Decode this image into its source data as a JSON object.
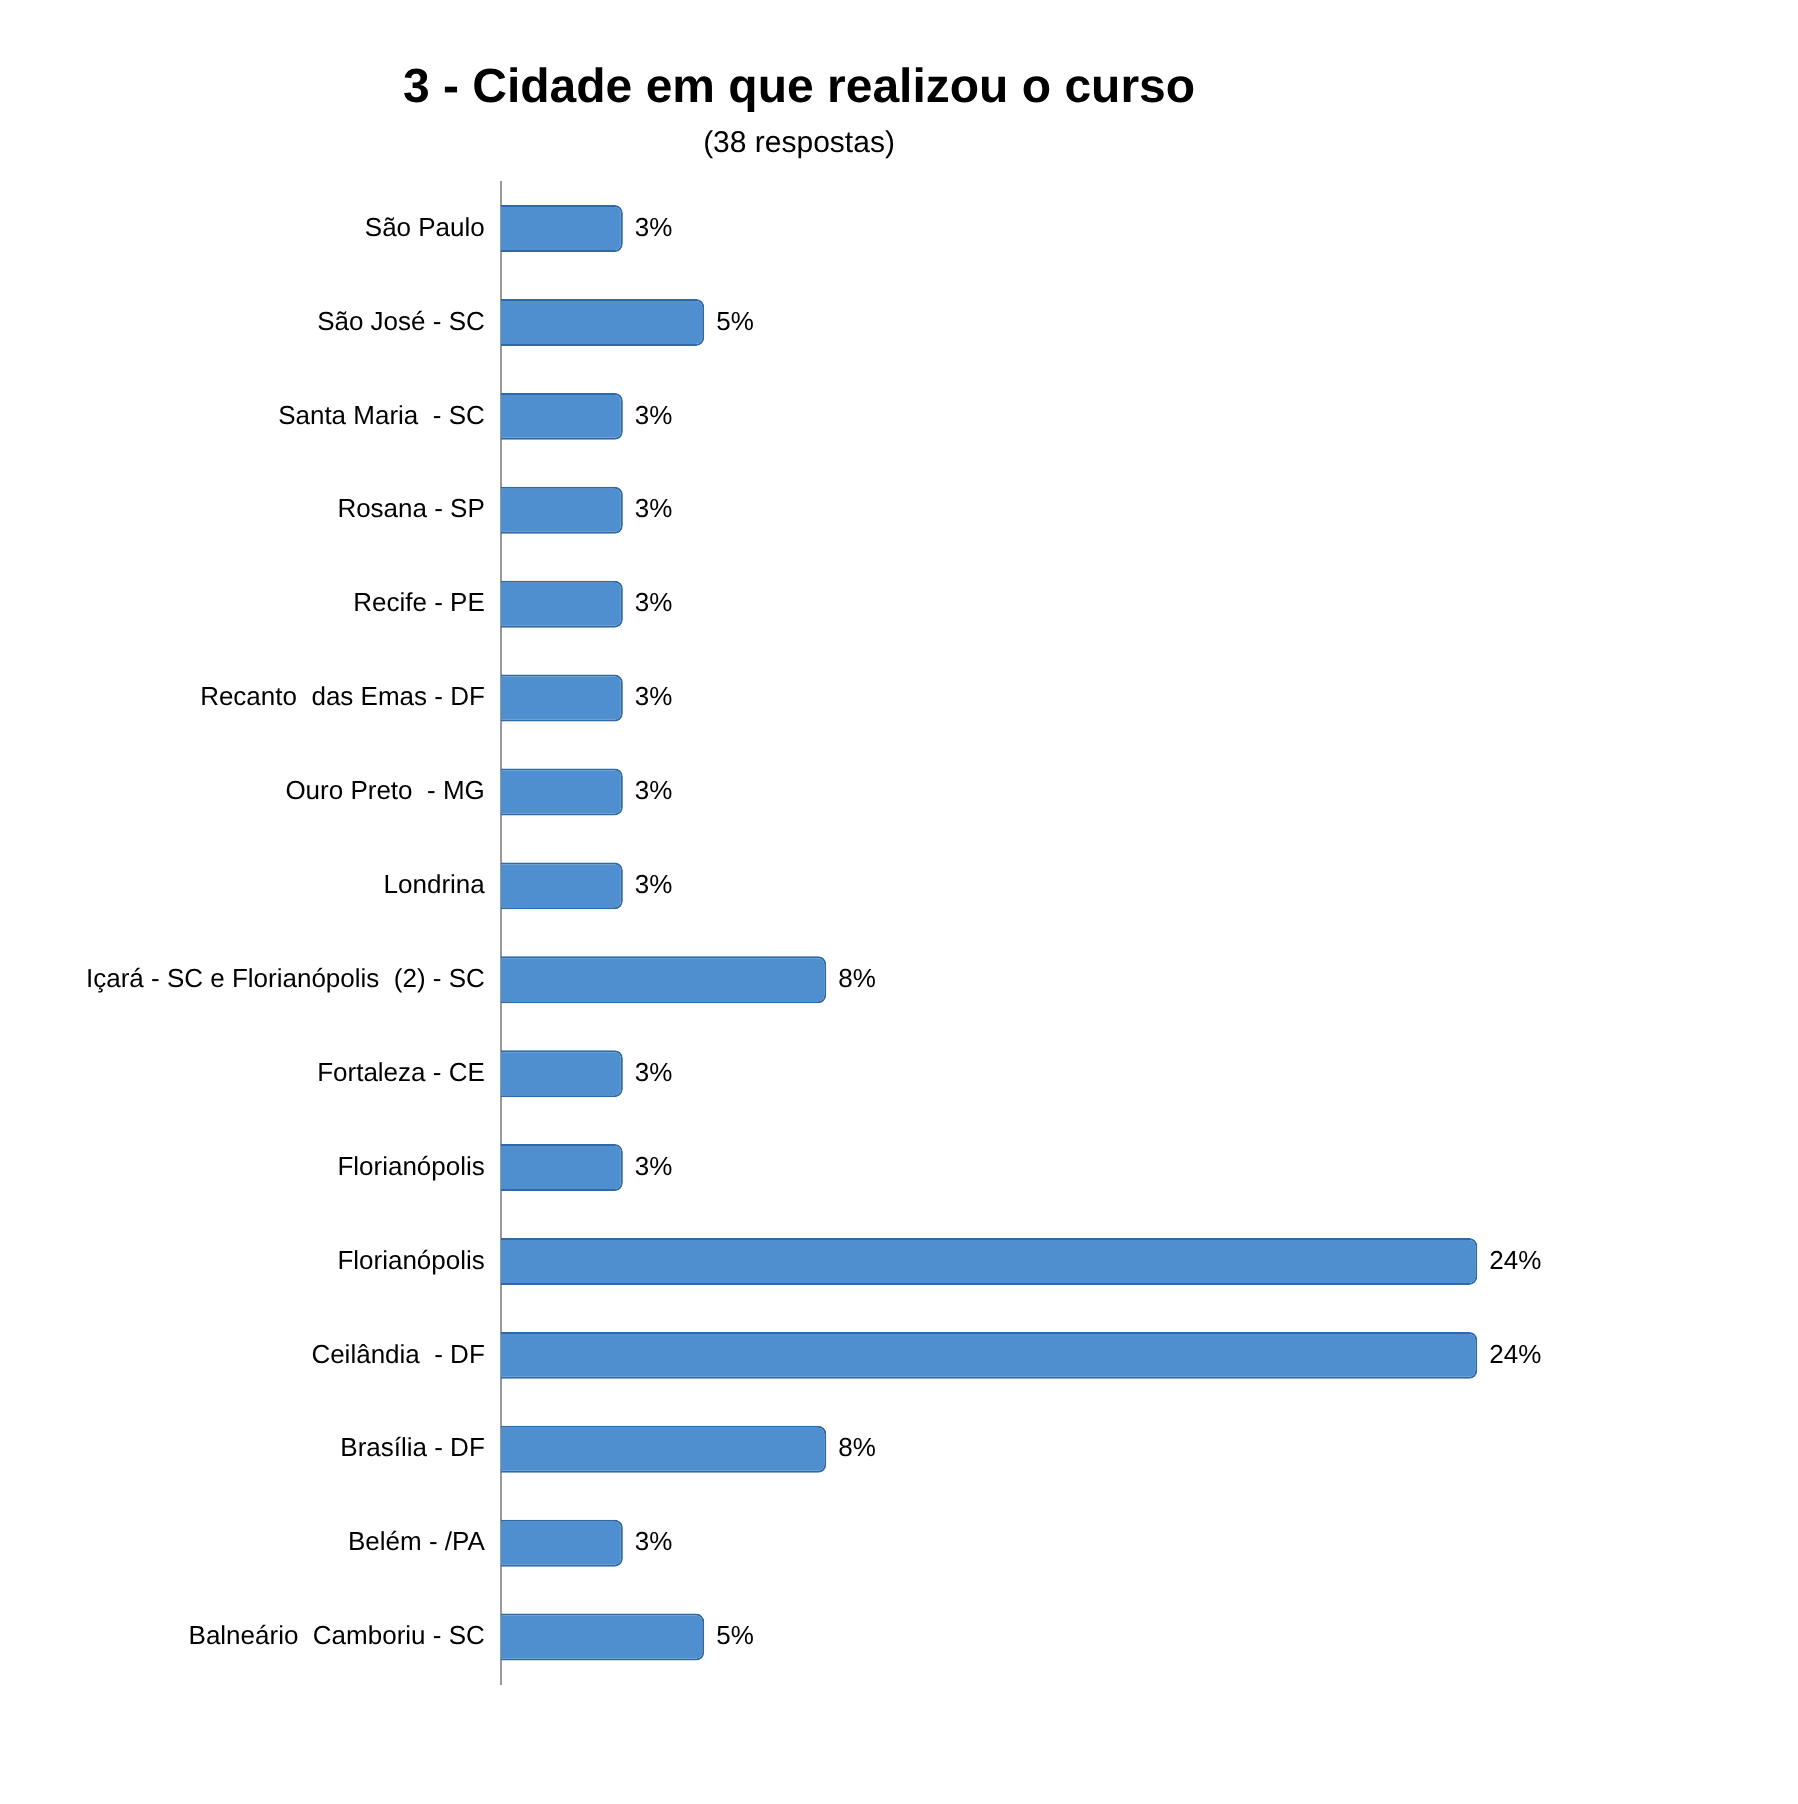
{
  "chart_data": {
    "type": "bar",
    "orientation": "horizontal",
    "title": "3 - Cidade em que realizou o curso",
    "subtitle": "(38 respostas)",
    "categories": [
      "São Paulo",
      "São José - SC",
      "Santa Maria  - SC",
      "Rosana - SP",
      "Recife - PE",
      "Recanto  das Emas - DF",
      "Ouro Preto  - MG",
      "Londrina",
      "Içará - SC e Florianópolis  (2) - SC",
      "Fortaleza - CE",
      "Florianópolis",
      "Florianópolis",
      "Ceilândia  - DF",
      "Brasília - DF",
      "Belém - /PA",
      "Balneário  Camboriu - SC"
    ],
    "values": [
      3,
      5,
      3,
      3,
      3,
      3,
      3,
      3,
      8,
      3,
      3,
      24,
      24,
      8,
      3,
      5
    ],
    "value_labels": [
      "3%",
      "5%",
      "3%",
      "3%",
      "3%",
      "3%",
      "3%",
      "3%",
      "8%",
      "3%",
      "3%",
      "24%",
      "24%",
      "8%",
      "3%",
      "5%"
    ],
    "color": "#4f8fd0",
    "tick_labels": "y",
    "grid": false,
    "legend": false
  }
}
